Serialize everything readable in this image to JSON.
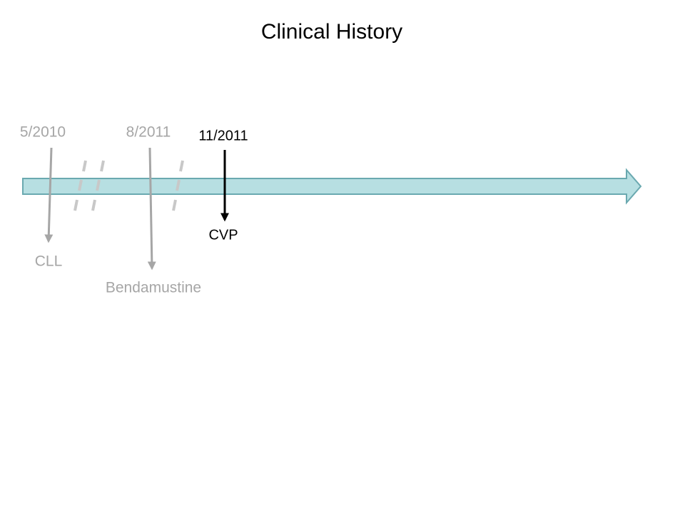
{
  "title": "Clinical History",
  "events": [
    {
      "date": "5/2010",
      "label": "CLL"
    },
    {
      "date": "8/2011",
      "label": "Bendamustine"
    },
    {
      "date": "11/2011",
      "label": "CVP"
    }
  ]
}
